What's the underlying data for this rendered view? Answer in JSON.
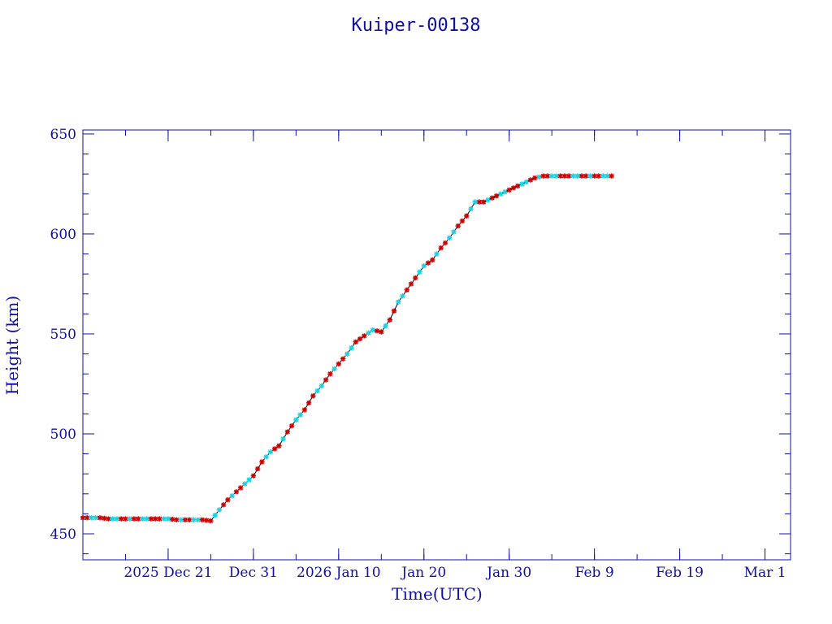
{
  "chart_data": {
    "type": "scatter",
    "title": "Kuiper-00138",
    "xlabel": "Time(UTC)",
    "ylabel": "Height (km)",
    "x_ticks": [
      "2025 Dec 21",
      "Dec 31",
      "2026 Jan 10",
      "Jan 20",
      "Jan 30",
      "Feb  9",
      "Feb 19",
      "Mar  1"
    ],
    "x_tick_dates": [
      "2025-12-21",
      "2025-12-31",
      "2026-01-10",
      "2026-01-20",
      "2026-01-30",
      "2026-02-09",
      "2026-02-19",
      "2026-03-01"
    ],
    "xlim": [
      "2025-12-11",
      "2026-03-04"
    ],
    "y_ticks": [
      450,
      500,
      550,
      600,
      650
    ],
    "ylim": [
      437,
      652
    ],
    "grid": false,
    "series_colors": [
      "#cc0000",
      "#20d0e0"
    ],
    "line_color": "#000000",
    "points": [
      [
        "2025-12-11",
        458
      ],
      [
        "2025-12-12",
        458
      ],
      [
        "2025-12-13",
        458
      ],
      [
        "2025-12-14",
        457.5
      ],
      [
        "2025-12-15",
        457.5
      ],
      [
        "2025-12-16",
        457.5
      ],
      [
        "2025-12-17",
        457.5
      ],
      [
        "2025-12-18",
        457.5
      ],
      [
        "2025-12-19",
        457.5
      ],
      [
        "2025-12-20",
        457.5
      ],
      [
        "2025-12-21",
        457.5
      ],
      [
        "2025-12-22",
        457
      ],
      [
        "2025-12-23",
        457
      ],
      [
        "2025-12-24",
        457
      ],
      [
        "2025-12-25",
        457
      ],
      [
        "2025-12-26",
        456.5
      ],
      [
        "2025-12-27",
        462
      ],
      [
        "2025-12-28",
        467
      ],
      [
        "2025-12-29",
        471
      ],
      [
        "2025-12-30",
        475
      ],
      [
        "2025-12-31",
        479
      ],
      [
        "2026-01-01",
        486
      ],
      [
        "2026-01-02",
        491
      ],
      [
        "2026-01-03",
        494
      ],
      [
        "2026-01-04",
        501
      ],
      [
        "2026-01-05",
        507
      ],
      [
        "2026-01-06",
        512
      ],
      [
        "2026-01-07",
        519
      ],
      [
        "2026-01-08",
        524
      ],
      [
        "2026-01-09",
        530
      ],
      [
        "2026-01-10",
        535
      ],
      [
        "2026-01-11",
        540
      ],
      [
        "2026-01-12",
        546
      ],
      [
        "2026-01-13",
        549
      ],
      [
        "2026-01-14",
        552
      ],
      [
        "2026-01-15",
        551
      ],
      [
        "2026-01-16",
        557
      ],
      [
        "2026-01-17",
        566
      ],
      [
        "2026-01-18",
        572
      ],
      [
        "2026-01-19",
        578
      ],
      [
        "2026-01-20",
        584
      ],
      [
        "2026-01-21",
        587
      ],
      [
        "2026-01-22",
        593
      ],
      [
        "2026-01-23",
        598
      ],
      [
        "2026-01-24",
        604
      ],
      [
        "2026-01-25",
        609
      ],
      [
        "2026-01-26",
        616
      ],
      [
        "2026-01-27",
        616
      ],
      [
        "2026-01-28",
        618
      ],
      [
        "2026-01-29",
        620
      ],
      [
        "2026-01-30",
        622
      ],
      [
        "2026-01-31",
        624
      ],
      [
        "2026-02-01",
        626
      ],
      [
        "2026-02-02",
        628
      ],
      [
        "2026-02-03",
        629
      ],
      [
        "2026-02-04",
        629
      ],
      [
        "2026-02-05",
        629
      ],
      [
        "2026-02-06",
        629
      ],
      [
        "2026-02-07",
        629
      ],
      [
        "2026-02-08",
        629
      ],
      [
        "2026-02-09",
        629
      ],
      [
        "2026-02-10",
        629
      ],
      [
        "2026-02-11",
        629
      ]
    ]
  }
}
